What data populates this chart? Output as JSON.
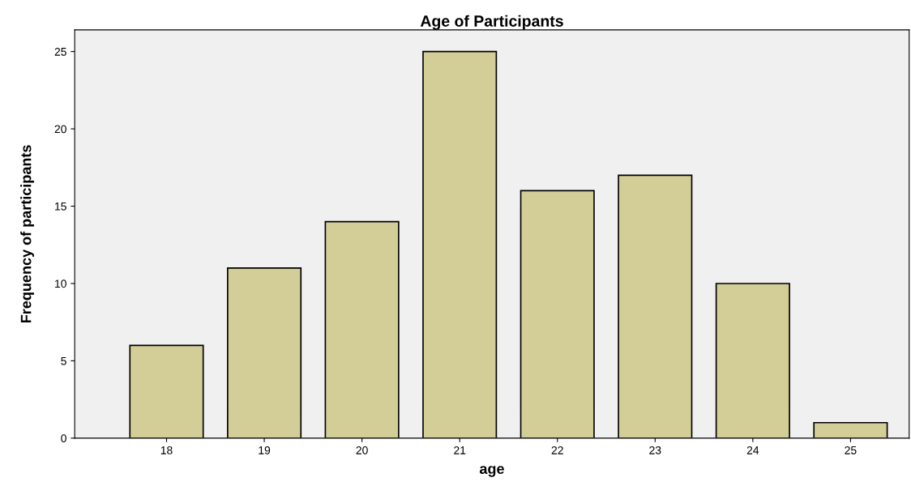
{
  "chart_data": {
    "type": "bar",
    "title": "Age of Participants",
    "xlabel": "age",
    "ylabel": "Frequency of participants",
    "categories": [
      "18",
      "19",
      "20",
      "21",
      "22",
      "23",
      "24",
      "25"
    ],
    "values": [
      6,
      11,
      14,
      25,
      16,
      17,
      10,
      1
    ],
    "color": "#d3ce97",
    "ylim": [
      0,
      26.4
    ],
    "yticks": [
      0,
      5,
      10,
      15,
      20,
      25
    ],
    "grid": false,
    "legend": false
  }
}
